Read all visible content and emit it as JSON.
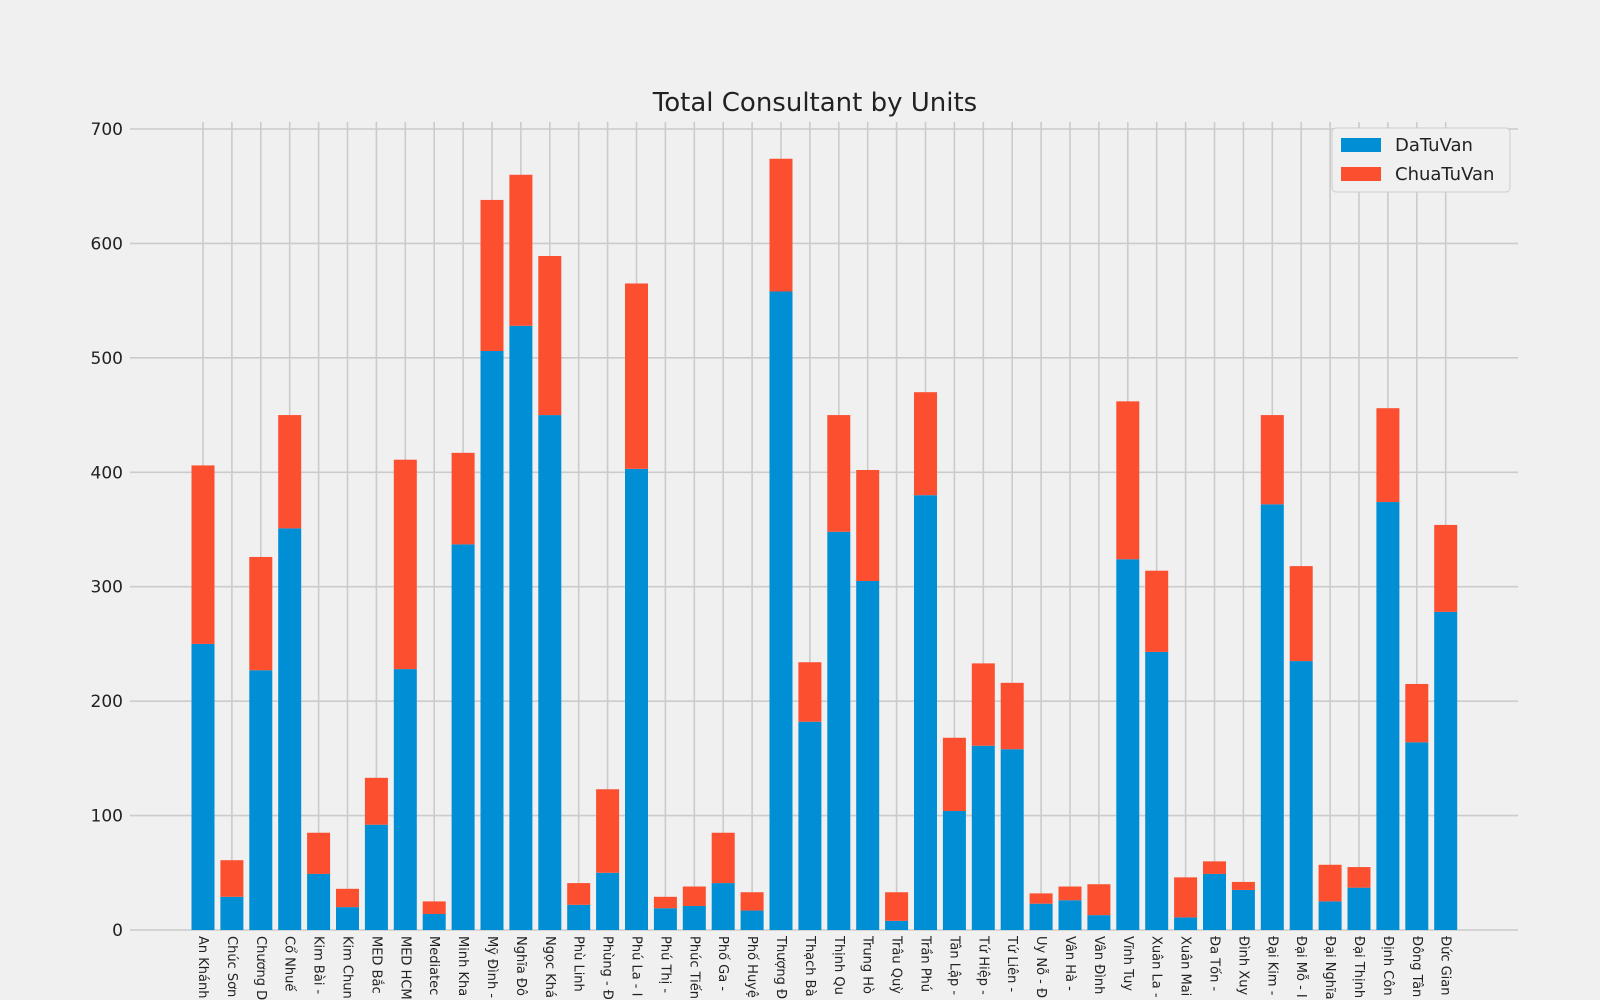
{
  "chart_data": {
    "type": "bar",
    "stacked": true,
    "title": "Total Consultant by Units",
    "xlabel": "",
    "ylabel": "",
    "ylim": [
      0,
      700
    ],
    "yticks": [
      0,
      100,
      200,
      300,
      400,
      500,
      600,
      700
    ],
    "grid": true,
    "legend_position": "top-right",
    "categories": [
      "An Khánh",
      "Chúc Sơn",
      "Chương D",
      "Cổ Nhuế",
      "Kim Bài -",
      "Kim Chun",
      "MED Bắc",
      "MED HCM",
      "Mediatec",
      "Minh Kha",
      "Mỹ Đình -",
      "Nghĩa Đô",
      "Ngọc Khá",
      "Phù Linh",
      "Phùng - Đ",
      "Phú La - I",
      "Phú Thị -",
      "Phúc Tiến",
      "Phố Ga -",
      "Phố Huyệ",
      "Thượng Đ",
      "Thạch Bà",
      "Thịnh Qu",
      "Trung Hò",
      "Trâu Quỳ",
      "Trần Phú",
      "Tân Lập -",
      "Tứ Hiệp -",
      "Tứ Liên -",
      "Uy Nỗ - Đ",
      "Vân Hà -",
      "Vân Đình",
      "Vĩnh Tuy",
      "Xuân La -",
      "Xuân Mai",
      "Đa Tốn -",
      "Đình Xuy",
      "Đại Kim -",
      "Đại Mỗ - I",
      "Đại Nghĩa",
      "Đại Thịnh",
      "Định Côn",
      "Đông Tân",
      "Đức Gian"
    ],
    "series": [
      {
        "name": "DaTuVan",
        "color": "#008fd5",
        "values": [
          250,
          29,
          227,
          351,
          49,
          20,
          92,
          228,
          14,
          337,
          506,
          528,
          450,
          22,
          50,
          403,
          19,
          21,
          41,
          17,
          558,
          182,
          348,
          305,
          8,
          380,
          104,
          161,
          158,
          23,
          26,
          13,
          324,
          243,
          11,
          49,
          35,
          372,
          235,
          25,
          37,
          374,
          164,
          278
        ]
      },
      {
        "name": "ChuaTuVan",
        "color": "#fc4f30",
        "values": [
          156,
          32,
          99,
          99,
          36,
          16,
          41,
          183,
          11,
          80,
          132,
          132,
          139,
          19,
          73,
          162,
          10,
          17,
          44,
          16,
          116,
          52,
          102,
          97,
          25,
          90,
          64,
          72,
          58,
          9,
          12,
          27,
          138,
          71,
          35,
          11,
          7,
          78,
          83,
          32,
          18,
          82,
          51,
          76
        ]
      }
    ]
  }
}
